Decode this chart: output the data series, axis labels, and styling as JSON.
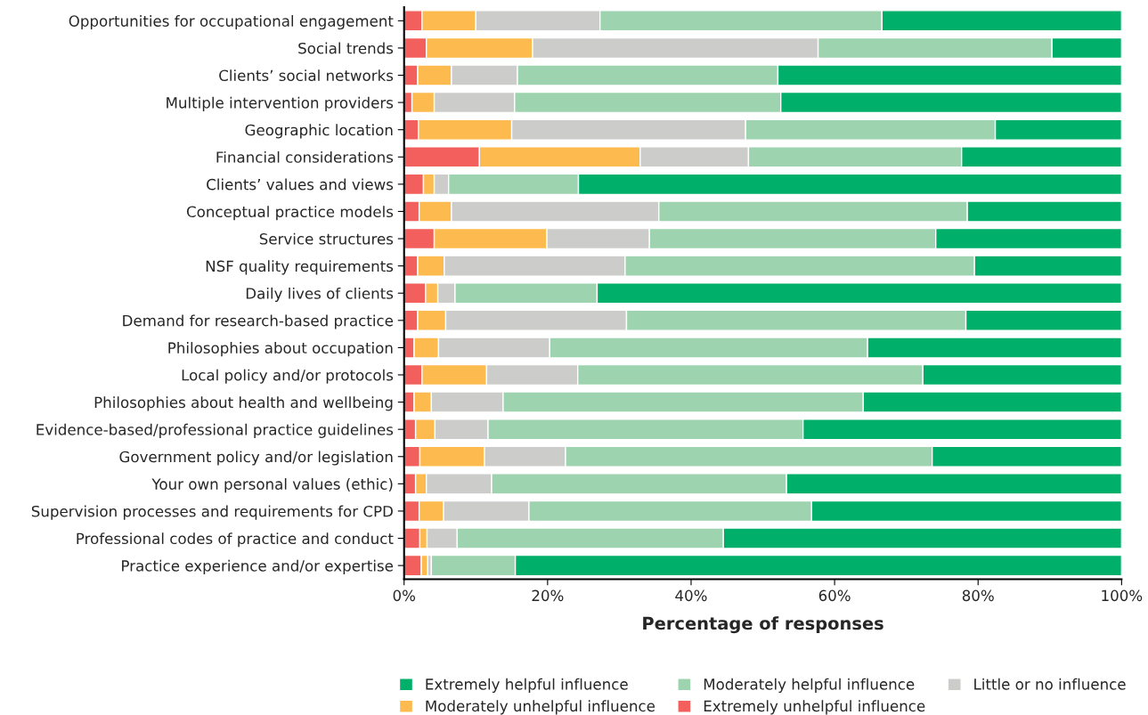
{
  "chart_data": {
    "type": "bar",
    "orientation": "horizontal",
    "stacked": true,
    "xlabel": "Percentage of responses",
    "categories": [
      "Opportunities for occupational engagement",
      "Social trends",
      "Clients’ social networks",
      "Multiple intervention providers",
      "Geographic location",
      "Financial considerations",
      "Clients’ values and views",
      "Conceptual practice models",
      "Service structures",
      "NSF quality requirements",
      "Daily lives of clients",
      "Demand for research-based practice",
      "Philosophies about occupation",
      "Local policy and/or protocols",
      "Philosophies about health and wellbeing",
      "Evidence-based/professional practice guidelines",
      "Government policy and/or legislation",
      "Your own personal values (ethic)",
      "Supervision processes and requirements for CPD",
      "Professional codes of practice and conduct",
      "Practice experience and/or expertise"
    ],
    "series": [
      {
        "name": "Extremely unhelpful influence",
        "color": "#f25f5c",
        "values": [
          2.5,
          3.1,
          1.9,
          1.1,
          2.0,
          10.5,
          2.7,
          2.1,
          4.2,
          1.9,
          3.0,
          1.9,
          1.4,
          2.5,
          1.4,
          1.6,
          2.2,
          1.6,
          2.1,
          2.2,
          2.4
        ]
      },
      {
        "name": "Moderately unhelpful influence",
        "color": "#fdbb4f",
        "values": [
          7.5,
          14.8,
          4.7,
          3.1,
          13.0,
          22.4,
          1.5,
          4.5,
          15.7,
          3.7,
          1.7,
          3.9,
          3.4,
          9.0,
          2.4,
          2.7,
          9.0,
          1.5,
          3.4,
          1.0,
          0.9
        ]
      },
      {
        "name": "Little or no influence",
        "color": "#cccccb",
        "values": [
          17.3,
          39.8,
          9.2,
          11.2,
          32.6,
          15.1,
          2.0,
          28.9,
          14.3,
          25.2,
          2.4,
          25.2,
          15.5,
          12.7,
          10.0,
          7.4,
          11.3,
          9.1,
          11.9,
          4.2,
          0.5
        ]
      },
      {
        "name": "Moderately helpful influence",
        "color": "#9dd3ae",
        "values": [
          39.3,
          32.6,
          36.3,
          37.1,
          34.8,
          29.7,
          18.1,
          43.0,
          39.9,
          48.7,
          19.8,
          47.3,
          44.3,
          48.1,
          50.2,
          43.9,
          51.1,
          41.1,
          39.4,
          37.1,
          11.7
        ]
      },
      {
        "name": "Extremely helpful influence",
        "color": "#00b06a",
        "values": [
          33.4,
          9.7,
          47.9,
          47.5,
          17.6,
          22.3,
          75.7,
          21.5,
          25.9,
          20.5,
          73.1,
          21.7,
          35.4,
          27.7,
          36.0,
          44.4,
          26.4,
          46.7,
          43.2,
          55.5,
          84.5
        ]
      }
    ],
    "xlim": [
      0,
      100
    ],
    "xticks": [
      {
        "value": 0,
        "label": "0%"
      },
      {
        "value": 20,
        "label": "20%"
      },
      {
        "value": 40,
        "label": "40%"
      },
      {
        "value": 60,
        "label": "60%"
      },
      {
        "value": 80,
        "label": "80%"
      },
      {
        "value": 100,
        "label": "100%"
      }
    ],
    "grid": false,
    "legend": "bottom"
  }
}
